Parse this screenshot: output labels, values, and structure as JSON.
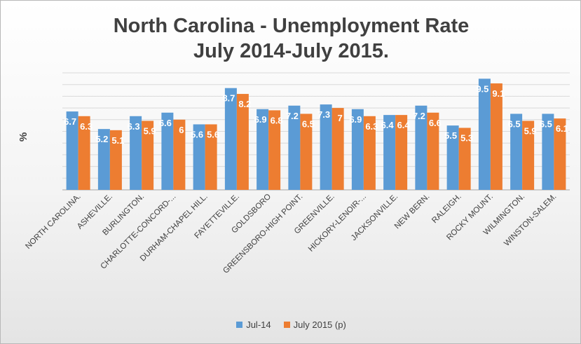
{
  "chart_data": {
    "type": "bar",
    "title_line1": "North Carolina - Unemployment Rate",
    "title_line2": "July 2014-July 2015.",
    "ylabel": "%",
    "xlabel": "",
    "categories": [
      "NORTH CAROLINA.",
      "ASHEVILLE.",
      "BURLINGTON.",
      "CHARLOTTE-CONCORD-...",
      "DURHAM-CHAPEL HILL.",
      "FAYETTEVILLE.",
      "GOLDSBORO",
      "GREENSBORO-HIGH POINT.",
      "GREENVILLE.",
      "HICKORY-LENOIR-...",
      "JACKSONVILLE.",
      "NEW BERN.",
      "RALEIGH.",
      "ROCKY MOUNT.",
      "WILMINGTON.",
      "WINSTON-SALEM."
    ],
    "series": [
      {
        "name": "Jul-14",
        "color": "#5b9bd5",
        "values": [
          6.7,
          5.2,
          6.3,
          6.6,
          5.6,
          8.7,
          6.9,
          7.2,
          7.3,
          6.9,
          6.4,
          7.2,
          5.5,
          9.5,
          6.5,
          6.5
        ]
      },
      {
        "name": "July 2015 (p)",
        "color": "#ed7d31",
        "values": [
          6.3,
          5.1,
          5.9,
          6,
          5.6,
          8.2,
          6.8,
          6.5,
          7,
          6.3,
          6.4,
          6.6,
          5.3,
          9.1,
          5.9,
          6.1
        ]
      }
    ],
    "ylim": [
      0,
      10
    ],
    "grid": true,
    "legend": "bottom",
    "data_labels": true,
    "label_color": "#ffffff"
  }
}
